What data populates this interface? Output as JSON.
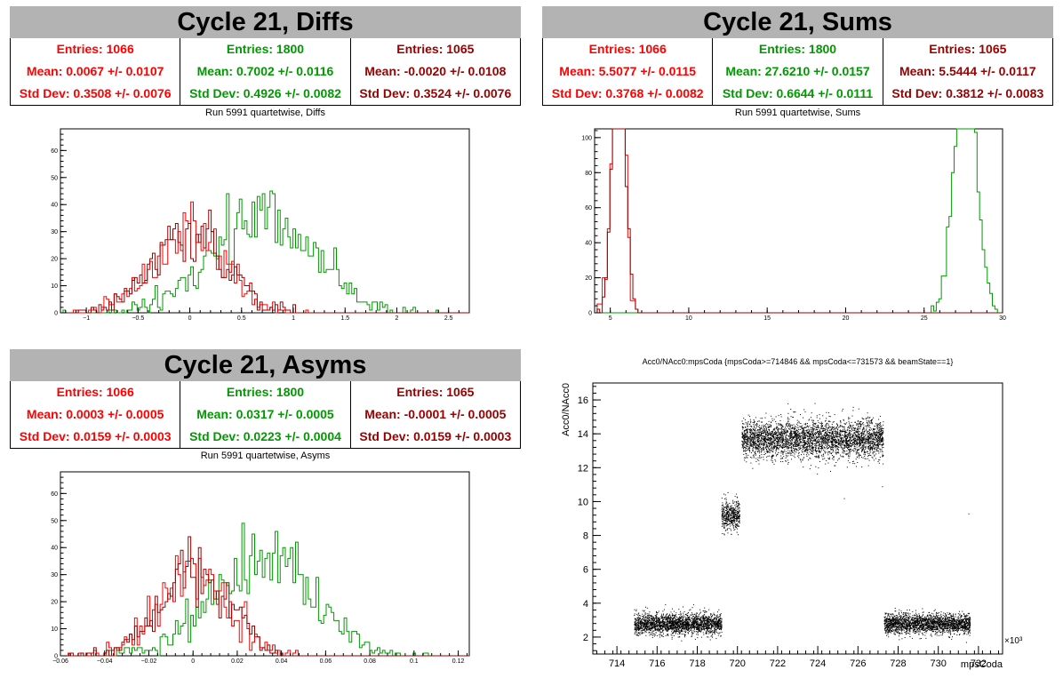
{
  "colors": {
    "red": "#ff0000",
    "green": "#009900",
    "dark": "#990000"
  },
  "panels": [
    {
      "title": "Cycle 21, Diffs",
      "subtitle": "Run 5991 quartetwise, Diffs",
      "stats": [
        {
          "entries": "Entries: 1066",
          "mean": "Mean: 0.0067 +/- 0.0107",
          "std": "Std Dev: 0.3508 +/- 0.0076",
          "color": "red"
        },
        {
          "entries": "Entries: 1800",
          "mean": "Mean: 0.7002 +/- 0.0116",
          "std": "Std Dev: 0.4926 +/- 0.0082",
          "color": "green"
        },
        {
          "entries": "Entries: 1065",
          "mean": "Mean: -0.0020 +/- 0.0108",
          "std": "Std Dev: 0.3524 +/- 0.0076",
          "color": "dark"
        }
      ]
    },
    {
      "title": "Cycle 21, Sums",
      "subtitle": "Run 5991 quartetwise, Sums",
      "stats": [
        {
          "entries": "Entries: 1066",
          "mean": "Mean: 5.5077 +/- 0.0115",
          "std": "Std Dev: 0.3768 +/- 0.0082",
          "color": "red"
        },
        {
          "entries": "Entries: 1800",
          "mean": "Mean: 27.6210 +/- 0.0157",
          "std": "Std Dev: 0.6644 +/- 0.0111",
          "color": "green"
        },
        {
          "entries": "Entries: 1065",
          "mean": "Mean: 5.5444 +/- 0.0117",
          "std": "Std Dev: 0.3812 +/- 0.0083",
          "color": "dark"
        }
      ]
    },
    {
      "title": "Cycle 21, Asyms",
      "subtitle": "Run 5991 quartetwise, Asyms",
      "stats": [
        {
          "entries": "Entries: 1066",
          "mean": "Mean: 0.0003 +/- 0.0005",
          "std": "Std Dev: 0.0159 +/- 0.0003",
          "color": "red"
        },
        {
          "entries": "Entries: 1800",
          "mean": "Mean: 0.0317 +/- 0.0005",
          "std": "Std Dev: 0.0223 +/- 0.0004",
          "color": "green"
        },
        {
          "entries": "Entries: 1065",
          "mean": "Mean: -0.0001 +/- 0.0005",
          "std": "Std Dev: 0.0159 +/- 0.0003",
          "color": "dark"
        }
      ]
    },
    {
      "title": "Acc0/NAcc0:mpsCoda {mpsCoda>=714846 && mpsCoda<=731573 && beamState==1}"
    }
  ],
  "chart_data": [
    {
      "type": "histogram",
      "name": "diffs",
      "xlim": [
        -1.25,
        2.7
      ],
      "ylim": [
        0,
        68
      ],
      "xticks": [
        -1,
        -0.5,
        0,
        0.5,
        1,
        1.5,
        2,
        2.5
      ],
      "xtick_labels": [
        "−1",
        "−0.5",
        "0",
        "0.5",
        "1",
        "1.5",
        "2",
        "2.5"
      ],
      "yticks": [
        0,
        10,
        20,
        30,
        40,
        50,
        60
      ],
      "series": [
        {
          "mean": 0.7002,
          "std": 0.4926,
          "entries": 1800,
          "color": "green"
        },
        {
          "mean": 0.0067,
          "std": 0.3508,
          "entries": 1066,
          "color": "red"
        },
        {
          "mean": -0.002,
          "std": 0.3524,
          "entries": 1065,
          "color": "dark"
        }
      ]
    },
    {
      "type": "histogram",
      "name": "sums",
      "xlim": [
        4,
        30
      ],
      "ylim": [
        0,
        105
      ],
      "xticks": [
        5,
        10,
        15,
        20,
        25,
        30
      ],
      "xtick_labels": [
        "5",
        "10",
        "15",
        "20",
        "25",
        "30"
      ],
      "yticks": [
        0,
        20,
        40,
        60,
        80,
        100
      ],
      "series": [
        {
          "mean": 27.621,
          "std": 0.6644,
          "entries": 1800,
          "color": "green"
        },
        {
          "mean": 5.5077,
          "std": 0.3768,
          "entries": 1066,
          "color": "red"
        },
        {
          "mean": 5.5444,
          "std": 0.3812,
          "entries": 1065,
          "color": "dark"
        }
      ]
    },
    {
      "type": "histogram",
      "name": "asyms",
      "xlim": [
        -0.06,
        0.125
      ],
      "ylim": [
        0,
        68
      ],
      "xticks": [
        -0.06,
        -0.04,
        -0.02,
        0,
        0.02,
        0.04,
        0.06,
        0.08,
        0.1,
        0.12
      ],
      "xtick_labels": [
        "−0.06",
        "−0.04",
        "−0.02",
        "0",
        "0.02",
        "0.04",
        "0.06",
        "0.08",
        "0.1",
        "0.12"
      ],
      "yticks": [
        0,
        10,
        20,
        30,
        40,
        50,
        60
      ],
      "series": [
        {
          "mean": 0.0317,
          "std": 0.0223,
          "entries": 1800,
          "color": "green"
        },
        {
          "mean": 0.0003,
          "std": 0.0159,
          "entries": 1066,
          "color": "red"
        },
        {
          "mean": -0.0001,
          "std": 0.0159,
          "entries": 1065,
          "color": "dark"
        }
      ]
    },
    {
      "type": "scatter",
      "name": "acc0-vs-mpscoda",
      "xlabel": "mpsCoda",
      "ylabel": "Acc0/NAcc0",
      "x_multiplier": "×10³",
      "xlim": [
        712.8,
        733.2
      ],
      "ylim": [
        1,
        17
      ],
      "xticks": [
        714,
        716,
        718,
        720,
        722,
        724,
        726,
        728,
        730,
        732
      ],
      "xtick_labels": [
        "714",
        "716",
        "718",
        "720",
        "722",
        "724",
        "726",
        "728",
        "730",
        "732"
      ],
      "yticks": [
        2,
        4,
        6,
        8,
        10,
        12,
        14,
        16
      ],
      "ytick_labels": [
        "2",
        "4",
        "6",
        "8",
        "10",
        "12",
        "14",
        "16"
      ],
      "clusters": [
        {
          "x": [
            714.85,
            719.2
          ],
          "y_center": 2.8,
          "y_spread": 0.3
        },
        {
          "x": [
            719.2,
            720.1
          ],
          "y_center": 9.2,
          "y_spread": 0.45
        },
        {
          "x": [
            720.2,
            727.25
          ],
          "y_center": 13.7,
          "y_spread": 0.55
        },
        {
          "x": [
            727.3,
            731.57
          ],
          "y_center": 2.8,
          "y_spread": 0.3
        }
      ]
    }
  ]
}
